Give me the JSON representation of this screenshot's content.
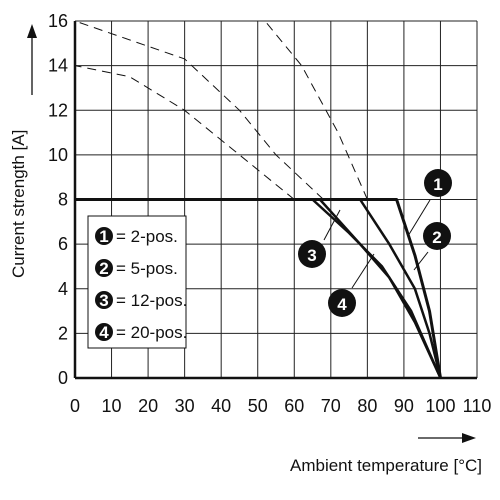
{
  "chart_data": {
    "type": "line",
    "xlabel": "Ambient temperature [°C]",
    "ylabel": "Current strength [A]",
    "xlim": [
      0,
      110
    ],
    "ylim": [
      0,
      16
    ],
    "x_ticks": [
      0,
      10,
      20,
      30,
      40,
      50,
      60,
      70,
      80,
      90,
      100,
      110
    ],
    "y_ticks": [
      0,
      2,
      4,
      6,
      8,
      10,
      12,
      14,
      16
    ],
    "grid": true,
    "legend_position": "left",
    "series": [
      {
        "name": "2-pos.",
        "id": "1",
        "values": [
          [
            0,
            8
          ],
          [
            88,
            8
          ],
          [
            93,
            5.5
          ],
          [
            97,
            3
          ],
          [
            100,
            0
          ]
        ],
        "dashed_extension": [
          [
            80,
            8
          ],
          [
            72,
            11
          ],
          [
            62,
            14
          ],
          [
            52,
            16
          ]
        ]
      },
      {
        "name": "5-pos.",
        "id": "2",
        "values": [
          [
            0,
            8
          ],
          [
            78,
            8
          ],
          [
            86,
            6
          ],
          [
            93,
            4
          ],
          [
            97,
            2
          ],
          [
            100,
            0
          ]
        ],
        "dashed_extension": [
          [
            68,
            8
          ],
          [
            55,
            10
          ],
          [
            45,
            12
          ],
          [
            30,
            14.3
          ],
          [
            0,
            16
          ]
        ]
      },
      {
        "name": "12-pos.",
        "id": "3",
        "values": [
          [
            0,
            8
          ],
          [
            67,
            8
          ],
          [
            78,
            6
          ],
          [
            86,
            4.5
          ],
          [
            93,
            2.5
          ],
          [
            100,
            0
          ]
        ],
        "dashed_extension": [
          [
            60,
            8
          ],
          [
            45,
            10
          ],
          [
            30,
            12
          ],
          [
            15,
            13.5
          ],
          [
            0,
            14
          ]
        ]
      },
      {
        "name": "20-pos.",
        "id": "4",
        "values": [
          [
            0,
            8
          ],
          [
            65,
            8
          ],
          [
            75,
            6.5
          ],
          [
            84,
            5
          ],
          [
            92,
            3
          ],
          [
            100,
            0
          ]
        ],
        "dashed_extension": []
      }
    ]
  },
  "legend": [
    {
      "num": "1",
      "text": "= 2-pos."
    },
    {
      "num": "2",
      "text": "= 5-pos."
    },
    {
      "num": "3",
      "text": "= 12-pos."
    },
    {
      "num": "4",
      "text": "= 20-pos."
    }
  ],
  "callouts": [
    {
      "num": "1"
    },
    {
      "num": "2"
    },
    {
      "num": "3"
    },
    {
      "num": "4"
    }
  ],
  "colors": {
    "line": "#111111",
    "badge_fill": "#111111",
    "badge_text": "#ffffff"
  }
}
